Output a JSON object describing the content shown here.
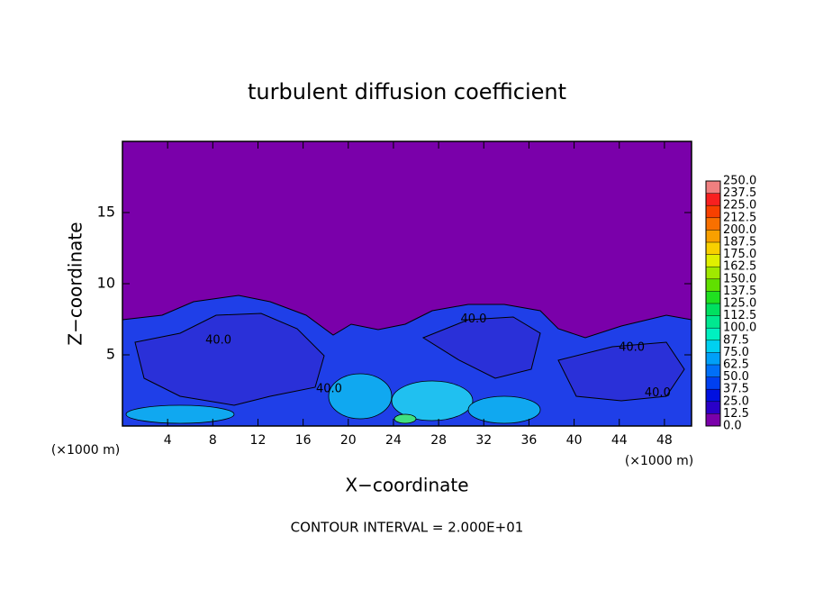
{
  "chart_data": {
    "type": "contour",
    "title": "turbulent diffusion coefficient",
    "x_label": "X−coordinate",
    "y_label": "Z−coordinate",
    "x_unit_label": "(×1000 m)",
    "y_unit_label": "(×1000 m)",
    "xlim": [
      0,
      50.4
    ],
    "ylim": [
      0,
      20
    ],
    "xticks": [
      4,
      8,
      12,
      16,
      20,
      24,
      28,
      32,
      36,
      40,
      44,
      48
    ],
    "yticks": [
      5,
      10,
      15
    ],
    "background_color": "#7a00aa",
    "levels": [
      {
        "value": 0,
        "label": "0.0"
      },
      {
        "value": 12.5,
        "label": "12.5"
      },
      {
        "value": 25,
        "label": "25.0"
      },
      {
        "value": 37.5,
        "label": "37.5"
      },
      {
        "value": 50,
        "label": "50.0"
      },
      {
        "value": 62.5,
        "label": "62.5"
      },
      {
        "value": 75,
        "label": "75.0"
      },
      {
        "value": 87.5,
        "label": "87.5"
      },
      {
        "value": 100,
        "label": "100.0"
      },
      {
        "value": 112.5,
        "label": "112.5"
      },
      {
        "value": 125,
        "label": "125.0"
      },
      {
        "value": 137.5,
        "label": "137.5"
      },
      {
        "value": 150,
        "label": "150.0"
      },
      {
        "value": 162.5,
        "label": "162.5"
      },
      {
        "value": 175,
        "label": "175.0"
      },
      {
        "value": 187.5,
        "label": "187.5"
      },
      {
        "value": 200,
        "label": "200.0"
      },
      {
        "value": 212.5,
        "label": "212.5"
      },
      {
        "value": 225,
        "label": "225.0"
      },
      {
        "value": 237.5,
        "label": "237.5"
      },
      {
        "value": 250,
        "label": "250.0"
      }
    ],
    "colors": [
      "#7a00aa",
      "#2a00c8",
      "#0010e0",
      "#0040f0",
      "#0070f8",
      "#00a0f8",
      "#00d0f0",
      "#00f0c0",
      "#00e890",
      "#00e060",
      "#20e020",
      "#60e000",
      "#a0e800",
      "#e0f000",
      "#f8d000",
      "#f8a000",
      "#f87000",
      "#f84000",
      "#f82020",
      "#f08080"
    ],
    "contour_labels": [
      {
        "text": "40.0",
        "x": 8.5,
        "y": 6.0
      },
      {
        "text": "40.0",
        "x": 18.3,
        "y": 2.6
      },
      {
        "text": "40.0",
        "x": 31.1,
        "y": 7.5
      },
      {
        "text": "40.0",
        "x": 45.1,
        "y": 5.5
      },
      {
        "text": "40.0",
        "x": 47.4,
        "y": 2.3
      }
    ],
    "footer": "CONTOUR INTERVAL = 2.000E+01"
  }
}
